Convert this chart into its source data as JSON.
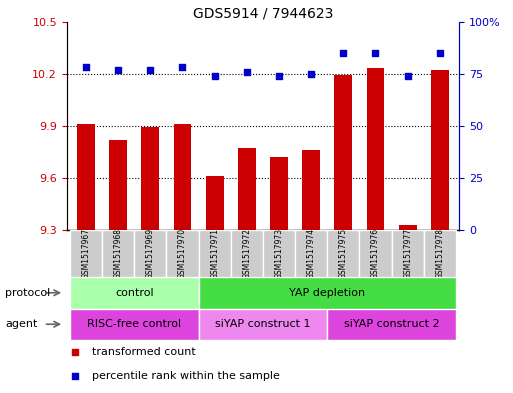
{
  "title": "GDS5914 / 7944623",
  "samples": [
    "GSM1517967",
    "GSM1517968",
    "GSM1517969",
    "GSM1517970",
    "GSM1517971",
    "GSM1517972",
    "GSM1517973",
    "GSM1517974",
    "GSM1517975",
    "GSM1517976",
    "GSM1517977",
    "GSM1517978"
  ],
  "transformed_count": [
    9.91,
    9.82,
    9.89,
    9.91,
    9.61,
    9.77,
    9.72,
    9.76,
    10.19,
    10.23,
    9.33,
    10.22
  ],
  "percentile_rank": [
    78,
    77,
    77,
    78,
    74,
    76,
    74,
    75,
    85,
    85,
    74,
    85
  ],
  "ylim_left": [
    9.3,
    10.5
  ],
  "ylim_right": [
    0,
    100
  ],
  "yticks_left": [
    9.3,
    9.6,
    9.9,
    10.2,
    10.5
  ],
  "yticks_right": [
    0,
    25,
    50,
    75,
    100
  ],
  "bar_color": "#cc0000",
  "dot_color": "#0000cc",
  "protocol_labels": [
    {
      "text": "control",
      "start": 0,
      "end": 4,
      "color": "#aaffaa"
    },
    {
      "text": "YAP depletion",
      "start": 4,
      "end": 12,
      "color": "#44dd44"
    }
  ],
  "agent_labels": [
    {
      "text": "RISC-free control",
      "start": 0,
      "end": 4,
      "color": "#dd44dd"
    },
    {
      "text": "siYAP construct 1",
      "start": 4,
      "end": 8,
      "color": "#ee88ee"
    },
    {
      "text": "siYAP construct 2",
      "start": 8,
      "end": 12,
      "color": "#dd44dd"
    }
  ],
  "legend_items": [
    {
      "label": "transformed count",
      "color": "#cc0000"
    },
    {
      "label": "percentile rank within the sample",
      "color": "#0000cc"
    }
  ],
  "protocol_row_label": "protocol",
  "agent_row_label": "agent",
  "sample_box_color": "#cccccc",
  "grid_ticks": [
    9.6,
    9.9,
    10.2
  ]
}
